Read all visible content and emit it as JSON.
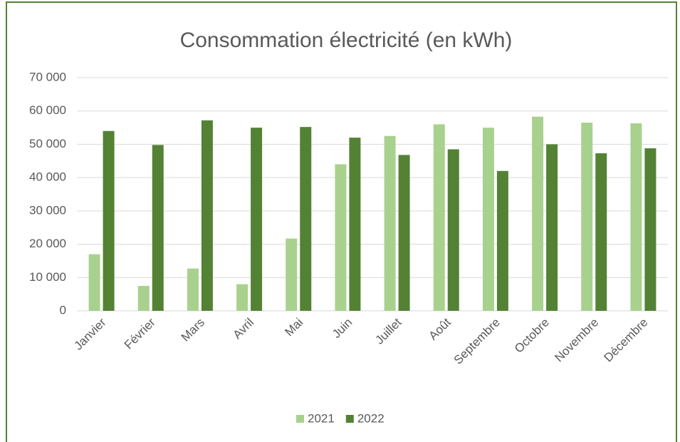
{
  "chart_data": {
    "type": "bar",
    "title": "Consommation électricité (en kWh)",
    "categories": [
      "Janvier",
      "Février",
      "Mars",
      "Avril",
      "Mai",
      "Juin",
      "Juillet",
      "Août",
      "Septembre",
      "Octobre",
      "Novembre",
      "Décembre"
    ],
    "series": [
      {
        "name": "2021",
        "color": "#a9d18e",
        "values": [
          17000,
          7500,
          12700,
          8000,
          21700,
          44000,
          52500,
          56000,
          55000,
          58300,
          56500,
          56300
        ]
      },
      {
        "name": "2022",
        "color": "#548235",
        "values": [
          54000,
          49800,
          57200,
          55000,
          55200,
          52000,
          46800,
          48500,
          42000,
          50000,
          47300,
          48800
        ]
      }
    ],
    "ylim": [
      0,
      70000
    ],
    "yticks": [
      0,
      {
        "value": 10000,
        "label": "10 000"
      },
      {
        "value": 20000,
        "label": "20 000"
      },
      {
        "value": 30000,
        "label": "30 000"
      },
      {
        "value": 40000,
        "label": "40 000"
      },
      {
        "value": 50000,
        "label": "50 000"
      },
      {
        "value": 60000,
        "label": "60 000"
      },
      {
        "value": 70000,
        "label": "70 000"
      }
    ],
    "grid": true,
    "legend": "bottom"
  }
}
